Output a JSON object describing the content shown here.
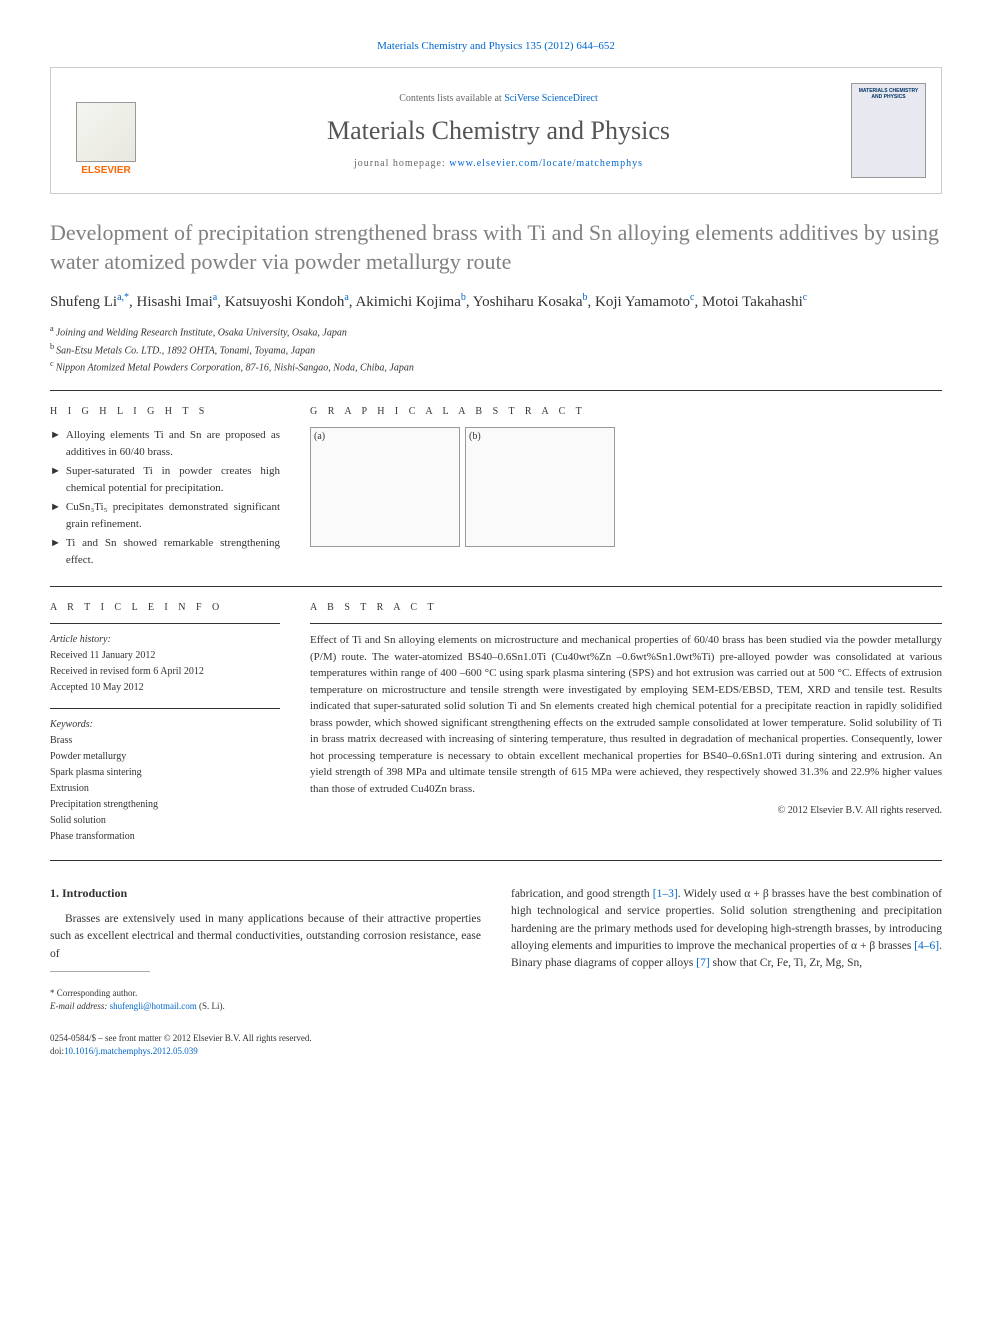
{
  "journal_ref": "Materials Chemistry and Physics 135 (2012) 644–652",
  "header": {
    "contents_prefix": "Contents lists available at ",
    "contents_link": "SciVerse ScienceDirect",
    "journal_name": "Materials Chemistry and Physics",
    "homepage_prefix": "journal homepage: ",
    "homepage_url": "www.elsevier.com/locate/matchemphys",
    "publisher": "ELSEVIER",
    "cover_text": "MATERIALS CHEMISTRY AND PHYSICS"
  },
  "article": {
    "title": "Development of precipitation strengthened brass with Ti and Sn alloying elements additives by using water atomized powder via powder metallurgy route",
    "authors_html": "Shufeng Li<sup>a,*</sup>, Hisashi Imai<sup>a</sup>, Katsuyoshi Kondoh<sup>a</sup>, Akimichi Kojima<sup>b</sup>, Yoshiharu Kosaka<sup>b</sup>, Koji Yamamoto<sup>c</sup>, Motoi Takahashi<sup>c</sup>",
    "affiliations": [
      {
        "sup": "a",
        "text": "Joining and Welding Research Institute, Osaka University, Osaka, Japan"
      },
      {
        "sup": "b",
        "text": "San-Etsu Metals Co. LTD., 1892 OHTA, Tonami, Toyama, Japan"
      },
      {
        "sup": "c",
        "text": "Nippon Atomized Metal Powders Corporation, 87-16, Nishi-Sangao, Noda, Chiba, Japan"
      }
    ]
  },
  "highlights": {
    "heading": "H I G H L I G H T S",
    "items": [
      "Alloying elements Ti and Sn are proposed as additives in 60/40 brass.",
      "Super-saturated Ti in powder creates high chemical potential for precipitation.",
      "CuSn₃Ti₅ precipitates demonstrated significant grain refinement.",
      "Ti and Sn showed remarkable strengthening effect."
    ]
  },
  "graphical_abstract": {
    "heading": "G R A P H I C A L  A B S T R A C T",
    "panels": [
      "(a)",
      "(b)"
    ]
  },
  "article_info": {
    "heading": "A R T I C L E  I N F O",
    "history_label": "Article history:",
    "received": "Received 11 January 2012",
    "revised": "Received in revised form 6 April 2012",
    "accepted": "Accepted 10 May 2012"
  },
  "keywords": {
    "label": "Keywords:",
    "items": [
      "Brass",
      "Powder metallurgy",
      "Spark plasma sintering",
      "Extrusion",
      "Precipitation strengthening",
      "Solid solution",
      "Phase transformation"
    ]
  },
  "abstract": {
    "heading": "A B S T R A C T",
    "text": "Effect of Ti and Sn alloying elements on microstructure and mechanical properties of 60/40 brass has been studied via the powder metallurgy (P/M) route. The water-atomized BS40–0.6Sn1.0Ti (Cu40wt%Zn –0.6wt%Sn1.0wt%Ti) pre-alloyed powder was consolidated at various temperatures within range of 400 –600 °C using spark plasma sintering (SPS) and hot extrusion was carried out at 500 °C. Effects of extrusion temperature on microstructure and tensile strength were investigated by employing SEM-EDS/EBSD, TEM, XRD and tensile test. Results indicated that super-saturated solid solution Ti and Sn elements created high chemical potential for a precipitate reaction in rapidly solidified brass powder, which showed significant strengthening effects on the extruded sample consolidated at lower temperature. Solid solubility of Ti in brass matrix decreased with increasing of sintering temperature, thus resulted in degradation of mechanical properties. Consequently, lower hot processing temperature is necessary to obtain excellent mechanical properties for BS40–0.6Sn1.0Ti during sintering and extrusion. An yield strength of 398 MPa and ultimate tensile strength of 615 MPa were achieved, they respectively showed 31.3% and 22.9% higher values than those of extruded Cu40Zn brass.",
    "copyright": "© 2012 Elsevier B.V. All rights reserved."
  },
  "introduction": {
    "heading": "1. Introduction",
    "col1": "Brasses are extensively used in many applications because of their attractive properties such as excellent electrical and thermal conductivities, outstanding corrosion resistance, ease of",
    "col2_part1": "fabrication, and good strength ",
    "col2_ref1": "[1–3]",
    "col2_part2": ". Widely used α + β brasses have the best combination of high technological and service properties. Solid solution strengthening and precipitation hardening are the primary methods used for developing high-strength brasses, by introducing alloying elements and impurities to improve the mechanical properties of α + β brasses ",
    "col2_ref2": "[4–6]",
    "col2_part3": ". Binary phase diagrams of copper alloys ",
    "col2_ref3": "[7]",
    "col2_part4": " show that Cr, Fe, Ti, Zr, Mg, Sn,"
  },
  "footnote": {
    "corresponding": "* Corresponding author.",
    "email_label": "E-mail address: ",
    "email": "shufengli@hotmail.com",
    "email_suffix": " (S. Li)."
  },
  "footer": {
    "line1": "0254-0584/$ – see front matter © 2012 Elsevier B.V. All rights reserved.",
    "doi_label": "doi:",
    "doi": "10.1016/j.matchemphys.2012.05.039"
  },
  "colors": {
    "link": "#0066cc",
    "title_gray": "#808080",
    "elsevier_orange": "#ff6600",
    "border": "#cccccc",
    "text": "#333333"
  }
}
